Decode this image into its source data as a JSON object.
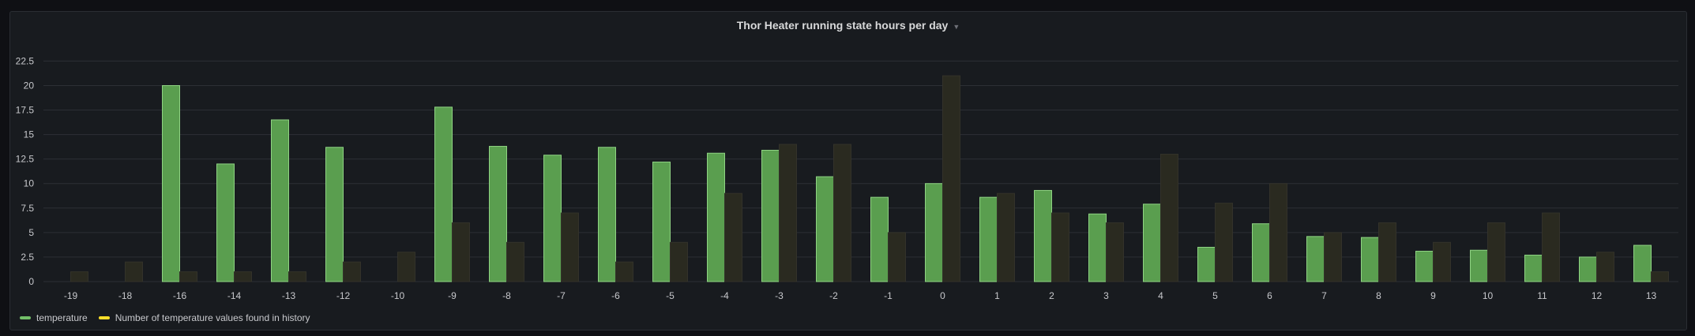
{
  "panel": {
    "title": "Thor Heater running state hours per day"
  },
  "chart_data": {
    "type": "bar",
    "title": "Thor Heater running state hours per day",
    "categories": [
      "-19",
      "-18",
      "-16",
      "-14",
      "-13",
      "-12",
      "-10",
      "-9",
      "-8",
      "-7",
      "-6",
      "-5",
      "-4",
      "-3",
      "-2",
      "-1",
      "0",
      "1",
      "2",
      "3",
      "4",
      "5",
      "6",
      "7",
      "8",
      "9",
      "10",
      "11",
      "12",
      "13"
    ],
    "series": [
      {
        "name": "temperature",
        "color": "#73bf69",
        "values": [
          null,
          null,
          20,
          12,
          16.5,
          13.7,
          null,
          17.8,
          13.8,
          12.9,
          13.7,
          12.2,
          13.1,
          13.4,
          10.7,
          8.6,
          10,
          8.6,
          9.3,
          6.9,
          7.9,
          3.5,
          5.9,
          4.6,
          4.5,
          3.1,
          3.2,
          2.7,
          2.5,
          3.7
        ]
      },
      {
        "name": "Number of temperature values found in history",
        "color": "#fade2a",
        "values": [
          1,
          2,
          1,
          1,
          1,
          2,
          3,
          6,
          4,
          7,
          2,
          4,
          9,
          14,
          14,
          5,
          21,
          9,
          7,
          6,
          13,
          8,
          10,
          5,
          6,
          4,
          6,
          7,
          3,
          1
        ]
      }
    ],
    "yticks": [
      "0",
      "2.5",
      "5",
      "7.5",
      "10",
      "12.5",
      "15",
      "17.5",
      "20",
      "22.5"
    ],
    "ylim": [
      0,
      23.5
    ],
    "grid": true,
    "legend_position": "bottom-left"
  },
  "legend": [
    {
      "label": "temperature",
      "color": "#73bf69"
    },
    {
      "label": "Number of temperature values found in history",
      "color": "#fade2a"
    }
  ]
}
